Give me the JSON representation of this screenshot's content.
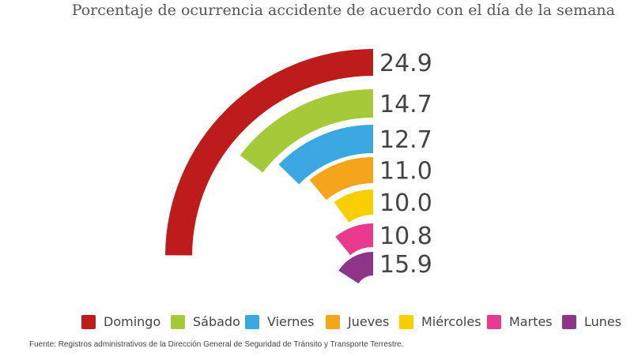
{
  "chart_data": {
    "type": "radial-bar",
    "title": "Porcentaje de ocurrencia accidente de acuerdo con el día de la semana",
    "categories": [
      "Domingo",
      "Sábado",
      "Viernes",
      "Jueves",
      "Miércoles",
      "Martes",
      "Lunes"
    ],
    "values": [
      24.9,
      14.7,
      12.7,
      11.0,
      10.0,
      10.8,
      15.9
    ],
    "value_labels": [
      "24.9",
      "14.7",
      "12.7",
      "11.0",
      "10.0",
      "10.8",
      "15.9"
    ],
    "colors": [
      "#be1b1b",
      "#a6c93a",
      "#3aa7e0",
      "#f4a51c",
      "#f7cf00",
      "#e83b8f",
      "#8f3589"
    ],
    "legend_position": "bottom"
  },
  "source": "Fuente: Registros administrativos de la Dirección General de Seguridad de Tránsito y Transporte Terrestre."
}
